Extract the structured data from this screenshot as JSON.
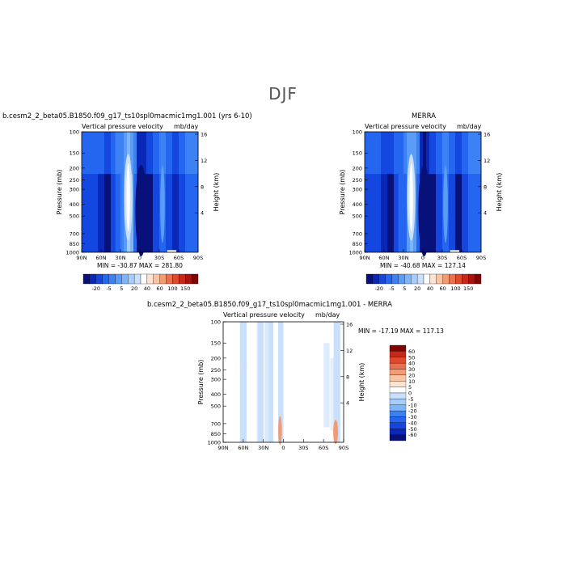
{
  "main_title": "DJF",
  "palette_full": [
    "#08107a",
    "#0a28b8",
    "#1446e0",
    "#2466f0",
    "#3d82f5",
    "#5a9cf7",
    "#7eb4f9",
    "#a6cdfb",
    "#c9e0fc",
    "#ffffff",
    "#fde4d2",
    "#f9c4a4",
    "#f29c74",
    "#e97150",
    "#dd4a2e",
    "#c8281a",
    "#a8130d",
    "#7f0505"
  ],
  "palette_diff": [
    "#08107a",
    "#0a28b8",
    "#1446e0",
    "#2466f0",
    "#3d82f5",
    "#7eb4f9",
    "#a6cdfb",
    "#c9e0fc",
    "#ffffff",
    "#fde4d2",
    "#f9c4a4",
    "#f29c74",
    "#e97150",
    "#dd4a2e",
    "#c8281a",
    "#7f0505"
  ],
  "chart_data": [
    {
      "type": "heatmap",
      "title": "b.cesm2_2_beta05.B1850.f09_g17_ts10spl0macmic1mg1.001 (yrs 6-10)",
      "subtitle_left": "Vertical pressure velocity",
      "subtitle_right": "mb/day",
      "ylabel": "Pressure (mb)",
      "ylabel_right": "Height (km)",
      "x_ticks": [
        "90N",
        "60N",
        "30N",
        "0",
        "30S",
        "60S",
        "90S"
      ],
      "y_ticks": [
        "100",
        "150",
        "200",
        "250",
        "300",
        "400",
        "500",
        "700",
        "850",
        "1000"
      ],
      "y_ticks_right": [
        "16",
        "12",
        "8",
        "4"
      ],
      "ylim": [
        1000,
        100
      ],
      "stats": "MIN = -30.87   MAX = 281.80",
      "colorbar_labels": [
        "-20",
        "-5",
        "5",
        "20",
        "40",
        "60",
        "100",
        "150"
      ],
      "bands": [
        {
          "lat": 90,
          "value": -12
        },
        {
          "lat": 75,
          "value": -10
        },
        {
          "lat": 65,
          "value": -16
        },
        {
          "lat": 55,
          "value": -22
        },
        {
          "lat": 45,
          "value": -14
        },
        {
          "lat": 38,
          "value": -8
        },
        {
          "lat": 30,
          "value": -4
        },
        {
          "lat": 25,
          "value": 5
        },
        {
          "lat": 20,
          "value": 12
        },
        {
          "lat": 15,
          "value": 8
        },
        {
          "lat": 10,
          "value": -6
        },
        {
          "lat": 5,
          "value": -26
        },
        {
          "lat": 0,
          "value": -30
        },
        {
          "lat": -5,
          "value": -28
        },
        {
          "lat": -10,
          "value": -20
        },
        {
          "lat": -20,
          "value": -12
        },
        {
          "lat": -30,
          "value": -8
        },
        {
          "lat": -40,
          "value": -14
        },
        {
          "lat": -50,
          "value": -18
        },
        {
          "lat": -60,
          "value": -12
        },
        {
          "lat": -70,
          "value": -8
        },
        {
          "lat": -80,
          "value": -6
        },
        {
          "lat": -90,
          "value": -10
        }
      ]
    },
    {
      "type": "heatmap",
      "title": "MERRA",
      "subtitle_left": "Vertical pressure velocity",
      "subtitle_right": "mb/day",
      "ylabel": "Pressure (mb)",
      "ylabel_right": "Height (km)",
      "x_ticks": [
        "90N",
        "60N",
        "30N",
        "0",
        "30S",
        "60S",
        "90S"
      ],
      "y_ticks": [
        "100",
        "150",
        "200",
        "250",
        "300",
        "400",
        "500",
        "700",
        "850",
        "1000"
      ],
      "y_ticks_right": [
        "16",
        "12",
        "8",
        "4"
      ],
      "ylim": [
        1000,
        100
      ],
      "stats": "MIN = -40.68   MAX = 127.14",
      "colorbar_labels": [
        "-20",
        "-5",
        "5",
        "20",
        "40",
        "60",
        "100",
        "150"
      ],
      "bands": [
        {
          "lat": 90,
          "value": -12
        },
        {
          "lat": 75,
          "value": -10
        },
        {
          "lat": 65,
          "value": -18
        },
        {
          "lat": 55,
          "value": -24
        },
        {
          "lat": 45,
          "value": -14
        },
        {
          "lat": 38,
          "value": -9
        },
        {
          "lat": 30,
          "value": -5
        },
        {
          "lat": 25,
          "value": 3
        },
        {
          "lat": 20,
          "value": 8
        },
        {
          "lat": 15,
          "value": 4
        },
        {
          "lat": 10,
          "value": -8
        },
        {
          "lat": 5,
          "value": -30
        },
        {
          "lat": 0,
          "value": -36
        },
        {
          "lat": -5,
          "value": -30
        },
        {
          "lat": -10,
          "value": -22
        },
        {
          "lat": -20,
          "value": -12
        },
        {
          "lat": -30,
          "value": -8
        },
        {
          "lat": -40,
          "value": -14
        },
        {
          "lat": -50,
          "value": -20
        },
        {
          "lat": -60,
          "value": -12
        },
        {
          "lat": -70,
          "value": -8
        },
        {
          "lat": -80,
          "value": -6
        },
        {
          "lat": -90,
          "value": -10
        }
      ]
    },
    {
      "type": "heatmap",
      "title": "b.cesm2_2_beta05.B1850.f09_g17_ts10spl0macmic1mg1.001 - MERRA",
      "subtitle_left": "Vertical pressure velocity",
      "subtitle_right": "mb/day",
      "ylabel": "Pressure (mb)",
      "ylabel_right": "Height (km)",
      "x_ticks": [
        "90N",
        "60N",
        "30N",
        "0",
        "30S",
        "60S",
        "90S"
      ],
      "y_ticks": [
        "100",
        "150",
        "200",
        "250",
        "300",
        "400",
        "500",
        "700",
        "850",
        "1000"
      ],
      "y_ticks_right": [
        "16",
        "12",
        "8",
        "4"
      ],
      "ylim": [
        1000,
        100
      ],
      "stats": "MIN = -17.19   MAX = 117.13",
      "colorbar_labels": [
        "60",
        "50",
        "40",
        "30",
        "20",
        "10",
        "5",
        "0",
        "-5",
        "-10",
        "-20",
        "-30",
        "-40",
        "-50",
        "-60"
      ],
      "bands": [
        {
          "lat": 90,
          "value": 2
        },
        {
          "lat": 75,
          "value": 1
        },
        {
          "lat": 65,
          "value": -2
        },
        {
          "lat": 55,
          "value": 2
        },
        {
          "lat": 45,
          "value": 1
        },
        {
          "lat": 38,
          "value": -2
        },
        {
          "lat": 30,
          "value": 2
        },
        {
          "lat": 22,
          "value": -3
        },
        {
          "lat": 15,
          "value": 1
        },
        {
          "lat": 8,
          "value": -2
        },
        {
          "lat": 3,
          "value": -4
        },
        {
          "lat": 0,
          "value": 3
        },
        {
          "lat": -5,
          "value": 4
        },
        {
          "lat": -15,
          "value": 2
        },
        {
          "lat": -25,
          "value": 1
        },
        {
          "lat": -35,
          "value": 3
        },
        {
          "lat": -45,
          "value": 2
        },
        {
          "lat": -55,
          "value": 3
        },
        {
          "lat": -65,
          "value": 2
        },
        {
          "lat": -75,
          "value": -2
        },
        {
          "lat": -85,
          "value": 1
        },
        {
          "lat": -90,
          "value": -3
        }
      ]
    }
  ]
}
